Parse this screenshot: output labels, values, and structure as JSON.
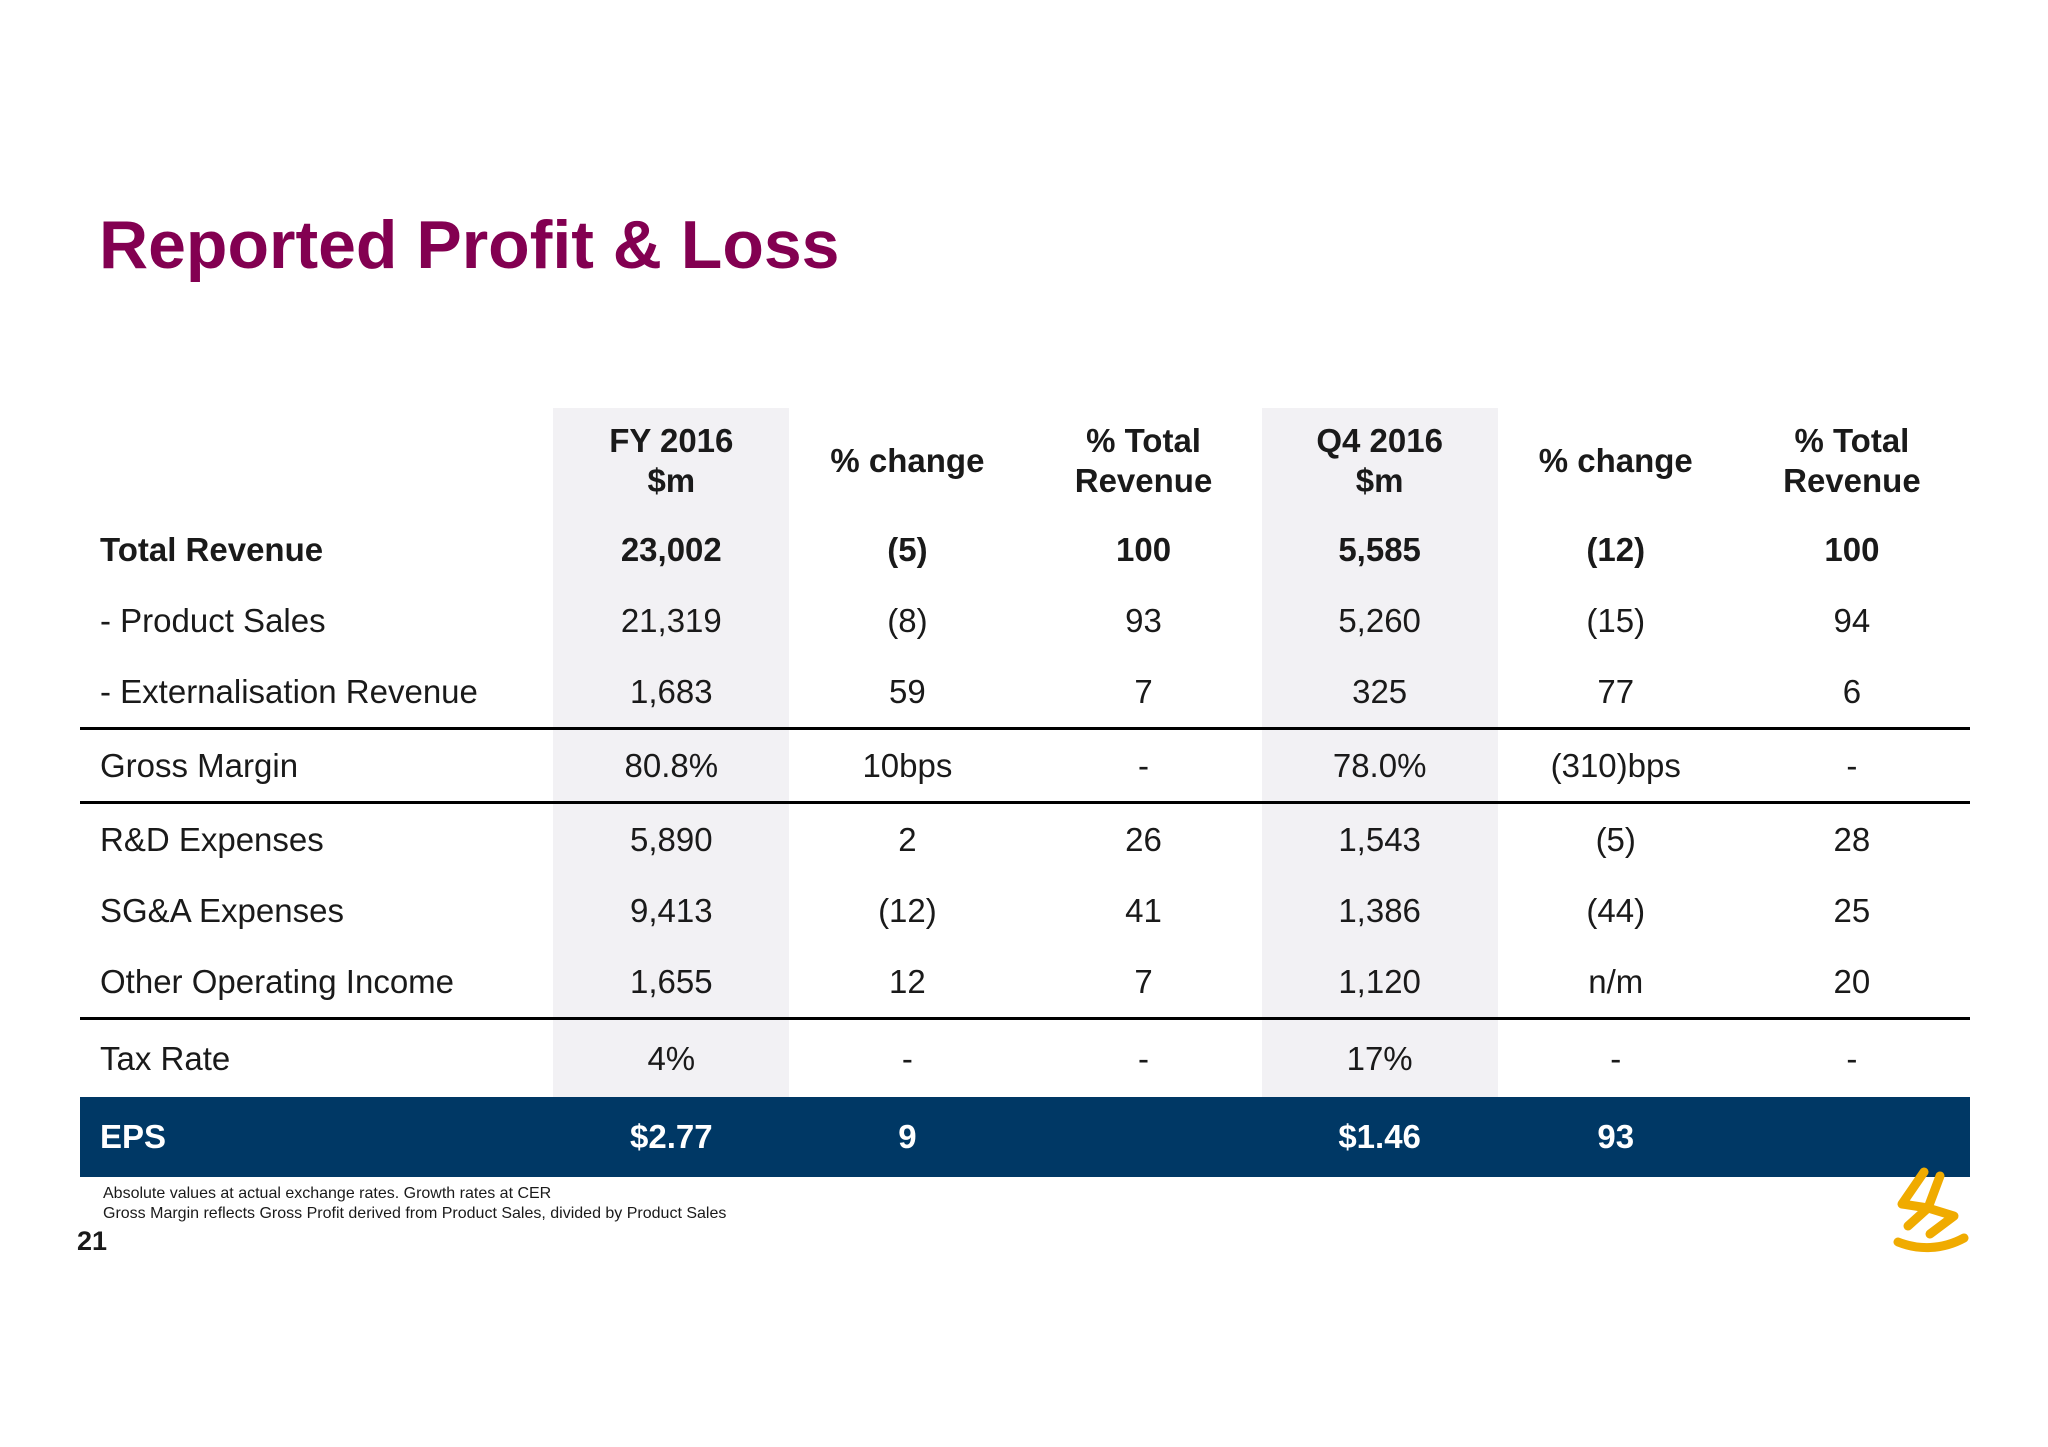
{
  "title": "Reported Profit & Loss",
  "headers": [
    "",
    "FY 2016\n$m",
    "% change",
    "% Total\nRevenue",
    "Q4 2016\n$m",
    "% change",
    "% Total\nRevenue"
  ],
  "header_lines": [
    [
      "",
      ""
    ],
    [
      "FY 2016",
      "$m"
    ],
    [
      "% change",
      ""
    ],
    [
      "% Total",
      "Revenue"
    ],
    [
      "Q4 2016",
      "$m"
    ],
    [
      "% change",
      ""
    ],
    [
      "% Total",
      "Revenue"
    ]
  ],
  "rows": [
    {
      "label": "Total Revenue",
      "values": [
        "23,002",
        "(5)",
        "100",
        "5,585",
        "(12)",
        "100"
      ]
    },
    {
      "label": "- Product Sales",
      "values": [
        "21,319",
        "(8)",
        "93",
        "5,260",
        "(15)",
        "94"
      ]
    },
    {
      "label": "- Externalisation Revenue",
      "values": [
        "1,683",
        "59",
        "7",
        "325",
        "77",
        "6"
      ]
    },
    {
      "label": "Gross Margin",
      "values": [
        "80.8%",
        "10bps",
        "-",
        "78.0%",
        "(310)bps",
        "-"
      ]
    },
    {
      "label": "R&D Expenses",
      "values": [
        "5,890",
        "2",
        "26",
        "1,543",
        "(5)",
        "28"
      ]
    },
    {
      "label": "SG&A Expenses",
      "values": [
        "9,413",
        "(12)",
        "41",
        "1,386",
        "(44)",
        "25"
      ]
    },
    {
      "label": "Other Operating Income",
      "values": [
        "1,655",
        "12",
        "7",
        "1,120",
        "n/m",
        "20"
      ]
    },
    {
      "label": "Tax Rate",
      "values": [
        "4%",
        "-",
        "-",
        "17%",
        "-",
        "-"
      ]
    },
    {
      "label": "EPS",
      "values": [
        "$2.77",
        "9",
        "",
        "$1.46",
        "93",
        ""
      ]
    }
  ],
  "footnotes": [
    "Absolute values at actual exchange rates. Growth rates at CER",
    "Gross Margin reflects Gross Profit derived from Product Sales, divided by Product Sales"
  ],
  "page_number": "21",
  "logo": {
    "name": "company-logo-icon",
    "color": "#f0ab00"
  },
  "colors": {
    "title": "#830051",
    "eps_band": "#003865",
    "column_shade": "#f2f1f4"
  }
}
